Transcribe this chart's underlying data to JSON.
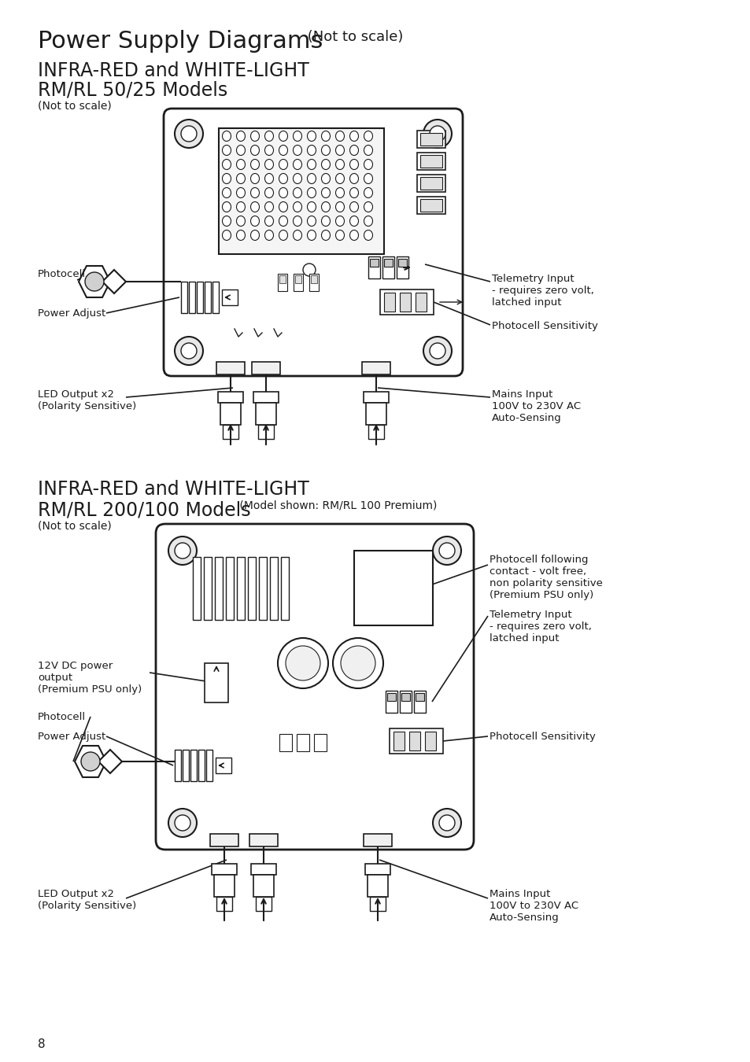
{
  "title_main": "Power Supply Diagrams",
  "title_main_sub": " (Not to scale)",
  "section1_line1": "INFRA-RED and WHITE-LIGHT",
  "section1_line2": "RM/RL 50/25 Models",
  "section1_sub": "(Not to scale)",
  "section2_line1": "INFRA-RED and WHITE-LIGHT",
  "section2_line2": "RM/RL 200/100 Models",
  "section2_small": " (Model shown: RM/RL 100 Premium)",
  "section2_sub": "(Not to scale)",
  "page_num": "8",
  "bg": "#ffffff",
  "lc": "#1c1c1c",
  "s1_photocell": "Photocell",
  "s1_power_adjust": "Power Adjust",
  "s1_led": "LED Output x2\n(Polarity Sensitive)",
  "s1_telemetry": "Telemetry Input\n- requires zero volt,\nlatched input",
  "s1_photocell_sens": "Photocell Sensitivity",
  "s1_mains": "Mains Input\n100V to 230V AC\nAuto-Sensing",
  "s2_photocell_following": "Photocell following\ncontact - volt free,\nnon polarity sensitive\n(Premium PSU only)",
  "s2_telemetry": "Telemetry Input\n- requires zero volt,\nlatched input",
  "s2_dc_power": "12V DC power\noutput\n(Premium PSU only)",
  "s2_photocell": "Photocell",
  "s2_power_adjust": "Power Adjust",
  "s2_photocell_sens": "Photocell Sensitivity",
  "s2_led": "LED Output x2\n(Polarity Sensitive)",
  "s2_mains": "Mains Input\n100V to 230V AC\nAuto-Sensing"
}
